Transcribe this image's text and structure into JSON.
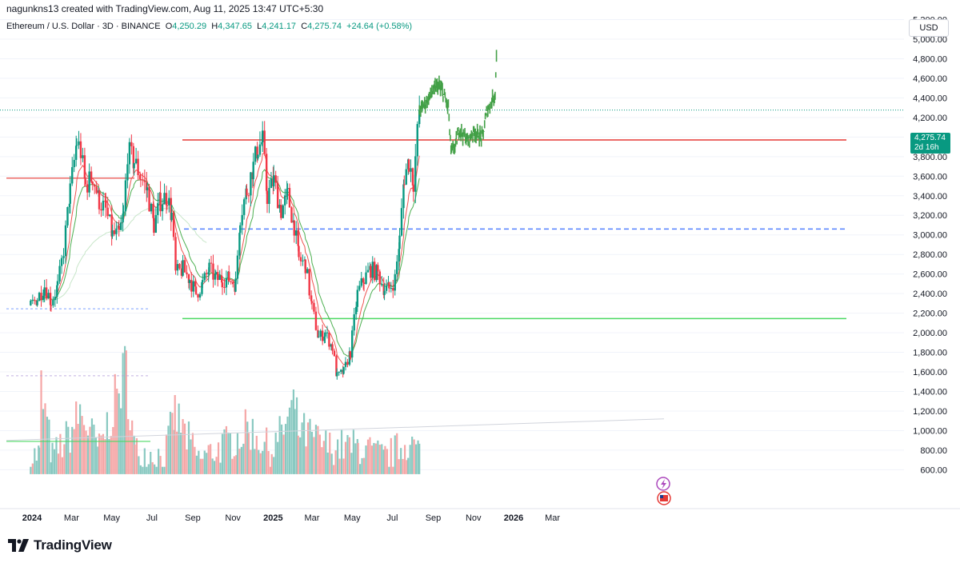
{
  "header": {
    "credit": "nagunkns13 created with TradingView.com, Aug 11, 2025 13:47 UTC+5:30"
  },
  "legend": {
    "symbol": "Ethereum / U.S. Dollar · 3D · BINANCE",
    "o_label": "O",
    "o_value": "4,250.29",
    "h_label": "H",
    "h_value": "4,347.65",
    "l_label": "L",
    "l_value": "4,241.17",
    "c_label": "C",
    "c_value": "4,275.74",
    "change": "+24.64 (+0.58%)"
  },
  "currency": "USD",
  "price_tag": {
    "price": "4,275.74",
    "countdown": "2d 16h"
  },
  "brand": {
    "name": "TradingView",
    "icon": "tradingview-logo-icon"
  },
  "overlay_icons": [
    "lightning-icon",
    "us-flag-icon"
  ],
  "colors": {
    "up": "#089981",
    "down": "#f23645",
    "up_volume": "#89c9c1",
    "down_volume": "#f5a6a6",
    "projection": "#43a047",
    "resistance": "#e53935",
    "support": "#4cd964",
    "mid_dashed": "#2962ff",
    "ema_fast": "#ef5350",
    "ema_slow": "#4caf50",
    "last_price_line": "#089981"
  },
  "chart_data": {
    "type": "candlestick",
    "symbol": "Ethereum / U.S. Dollar",
    "interval": "3D",
    "exchange": "BINANCE",
    "ylim": [
      500,
      5300
    ],
    "y_ticks": [
      "5,200.00",
      "5,000.00",
      "4,800.00",
      "4,600.00",
      "4,400.00",
      "4,200.00",
      "4,000.00",
      "3,800.00",
      "3,600.00",
      "3,400.00",
      "3,200.00",
      "3,000.00",
      "2,800.00",
      "2,600.00",
      "2,400.00",
      "2,200.00",
      "2,000.00",
      "1,800.00",
      "1,600.00",
      "1,400.00",
      "1,200.00",
      "1,000.00",
      "800.00",
      "600.00"
    ],
    "x_ticks": [
      "2024",
      "Mar",
      "May",
      "Jul",
      "Sep",
      "Nov",
      "2025",
      "Mar",
      "May",
      "Jul",
      "Sep",
      "Nov",
      "2026",
      "Mar"
    ],
    "last_price": 4275.74,
    "horizontal_levels": [
      {
        "name": "resistance",
        "price": 3970,
        "style": "solid"
      },
      {
        "name": "support",
        "price": 2145,
        "style": "solid"
      },
      {
        "name": "mid-range",
        "price": 3060,
        "style": "dashed"
      },
      {
        "name": "early-resistance",
        "price": 3580,
        "style": "solid"
      }
    ],
    "close_path": [
      [
        "2023-12-30",
        2280
      ],
      [
        "2024-01-09",
        2350
      ],
      [
        "2024-01-20",
        2480
      ],
      [
        "2024-01-30",
        2320
      ],
      [
        "2024-02-09",
        2470
      ],
      [
        "2024-02-18",
        2850
      ],
      [
        "2024-02-28",
        3450
      ],
      [
        "2024-03-09",
        3950
      ],
      [
        "2024-03-15",
        3850
      ],
      [
        "2024-03-22",
        3500
      ],
      [
        "2024-04-02",
        3600
      ],
      [
        "2024-04-12",
        3350
      ],
      [
        "2024-04-22",
        3250
      ],
      [
        "2024-05-02",
        3000
      ],
      [
        "2024-05-12",
        3000
      ],
      [
        "2024-05-19",
        3200
      ],
      [
        "2024-05-25",
        3850
      ],
      [
        "2024-06-04",
        3750
      ],
      [
        "2024-06-14",
        3600
      ],
      [
        "2024-06-24",
        3450
      ],
      [
        "2024-07-04",
        3100
      ],
      [
        "2024-07-14",
        3350
      ],
      [
        "2024-07-24",
        3400
      ],
      [
        "2024-07-31",
        3200
      ],
      [
        "2024-08-06",
        2600
      ],
      [
        "2024-08-17",
        2650
      ],
      [
        "2024-08-27",
        2550
      ],
      [
        "2024-09-06",
        2400
      ],
      [
        "2024-09-16",
        2500
      ],
      [
        "2024-09-26",
        2650
      ],
      [
        "2024-10-06",
        2550
      ],
      [
        "2024-10-16",
        2550
      ],
      [
        "2024-10-26",
        2550
      ],
      [
        "2024-11-05",
        2500
      ],
      [
        "2024-11-12",
        3200
      ],
      [
        "2024-11-22",
        3450
      ],
      [
        "2024-12-02",
        3700
      ],
      [
        "2024-12-09",
        3900
      ],
      [
        "2024-12-16",
        3950
      ],
      [
        "2024-12-23",
        3400
      ],
      [
        "2025-01-02",
        3550
      ],
      [
        "2025-01-13",
        3250
      ],
      [
        "2025-01-23",
        3400
      ],
      [
        "2025-02-02",
        3100
      ],
      [
        "2025-02-09",
        2750
      ],
      [
        "2025-02-19",
        2700
      ],
      [
        "2025-03-01",
        2250
      ],
      [
        "2025-03-11",
        1950
      ],
      [
        "2025-03-21",
        2000
      ],
      [
        "2025-04-01",
        1850
      ],
      [
        "2025-04-08",
        1550
      ],
      [
        "2025-04-18",
        1600
      ],
      [
        "2025-04-28",
        1800
      ],
      [
        "2025-05-09",
        2400
      ],
      [
        "2025-05-19",
        2550
      ],
      [
        "2025-05-29",
        2650
      ],
      [
        "2025-06-09",
        2600
      ],
      [
        "2025-06-19",
        2450
      ],
      [
        "2025-06-26",
        2450
      ],
      [
        "2025-07-05",
        2550
      ],
      [
        "2025-07-12",
        2950
      ],
      [
        "2025-07-19",
        3600
      ],
      [
        "2025-07-26",
        3750
      ],
      [
        "2025-08-02",
        3550
      ],
      [
        "2025-08-11",
        4275
      ]
    ],
    "volume_path": [
      [
        "2023-12-30",
        780
      ],
      [
        "2024-01-12",
        820
      ],
      [
        "2024-01-15",
        1520
      ],
      [
        "2024-02-01",
        790
      ],
      [
        "2024-02-28",
        1040
      ],
      [
        "2024-03-14",
        1270
      ],
      [
        "2024-04-12",
        870
      ],
      [
        "2024-05-23",
        1750
      ],
      [
        "2024-06-05",
        850
      ],
      [
        "2024-07-20",
        790
      ],
      [
        "2024-08-05",
        1250
      ],
      [
        "2024-09-10",
        760
      ],
      [
        "2024-11-08",
        1000
      ],
      [
        "2024-11-25",
        1100
      ],
      [
        "2024-12-30",
        850
      ],
      [
        "2025-02-03",
        1350
      ],
      [
        "2025-02-08",
        1090
      ],
      [
        "2025-03-25",
        900
      ],
      [
        "2025-05-10",
        900
      ],
      [
        "2025-06-20",
        780
      ],
      [
        "2025-07-25",
        950
      ],
      [
        "2025-08-11",
        850
      ]
    ],
    "projection_path": [
      [
        "2025-08-11",
        4280
      ],
      [
        "2025-08-21",
        4350
      ],
      [
        "2025-08-30",
        4450
      ],
      [
        "2025-09-08",
        4530
      ],
      [
        "2025-09-16",
        4450
      ],
      [
        "2025-09-24",
        4300
      ],
      [
        "2025-09-28",
        3850
      ],
      [
        "2025-10-04",
        3900
      ],
      [
        "2025-10-11",
        4080
      ],
      [
        "2025-10-16",
        4030
      ],
      [
        "2025-10-24",
        3960
      ],
      [
        "2025-11-01",
        4060
      ],
      [
        "2025-11-08",
        4020
      ],
      [
        "2025-11-15",
        4000
      ],
      [
        "2025-11-21",
        4250
      ],
      [
        "2025-11-28",
        4350
      ],
      [
        "2025-12-04",
        4450
      ],
      [
        "2025-12-06",
        4860
      ]
    ]
  }
}
